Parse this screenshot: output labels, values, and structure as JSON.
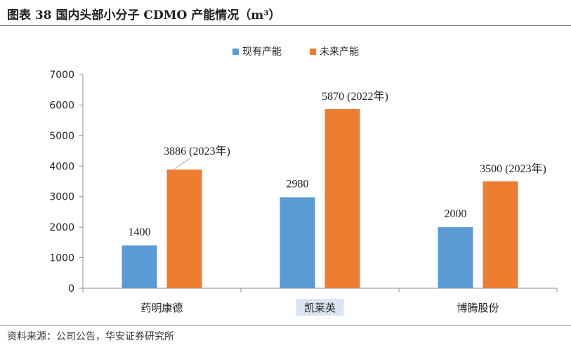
{
  "figure": {
    "title": "图表 38 国内头部小分子 CDMO 产能情况（m³）",
    "source": "资料来源：公司公告，华安证券研究所"
  },
  "colors": {
    "existing": "#5b9bd5",
    "future": "#ed7d31",
    "axis": "#8c8c8c",
    "highlight": "#dbe5f1"
  },
  "chart_data": {
    "type": "bar",
    "title": "",
    "xlabel": "",
    "ylabel": "",
    "ylim": [
      0,
      7000
    ],
    "yticks": [
      0,
      1000,
      2000,
      3000,
      4000,
      5000,
      6000,
      7000
    ],
    "grid": false,
    "legend": "top-center",
    "categories": [
      "药明康德",
      "凯莱英",
      "博腾股份"
    ],
    "highlighted_category": "凯莱英",
    "series": [
      {
        "name": "现有产能",
        "color": "#5b9bd5",
        "values": [
          1400,
          2980,
          2000
        ],
        "labels": [
          "1400",
          "2980",
          "2000"
        ]
      },
      {
        "name": "未来产能",
        "color": "#ed7d31",
        "values": [
          3886,
          5870,
          3500
        ],
        "labels": [
          "3886 (2023年)",
          "5870 (2022年)",
          "3500 (2023年)"
        ]
      }
    ]
  }
}
